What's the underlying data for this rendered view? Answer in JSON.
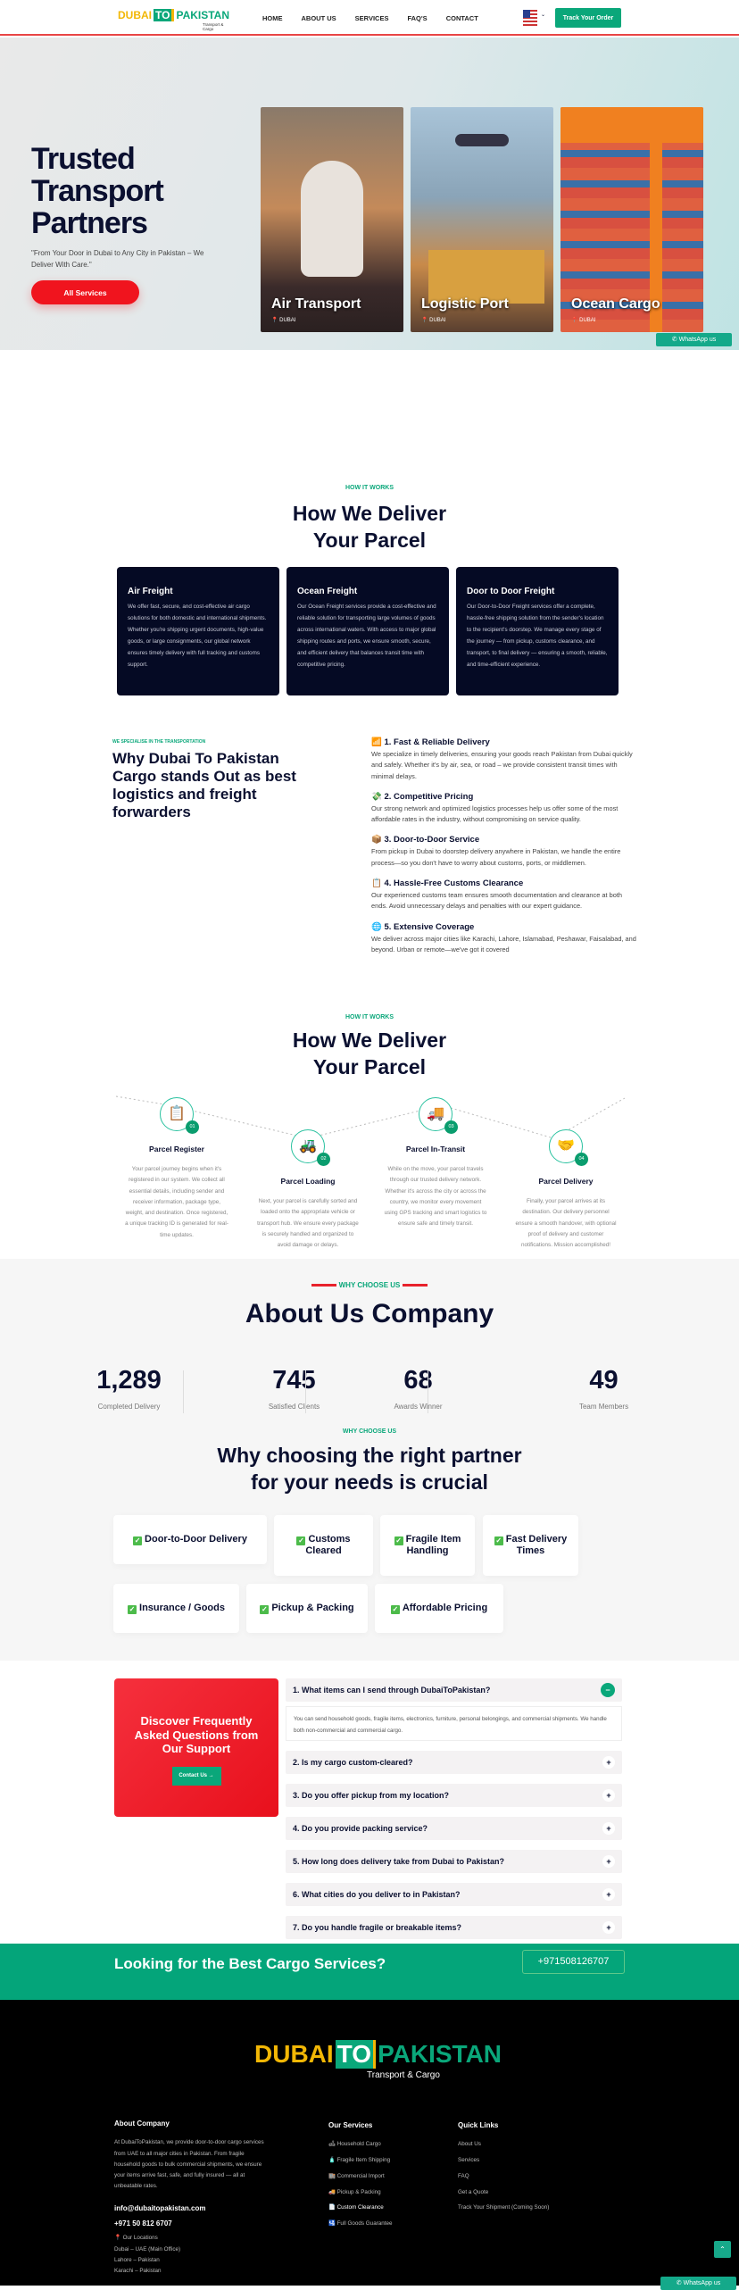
{
  "header": {
    "logo": {
      "left": "DUBAI",
      "mid": "TO",
      "right": "PAKISTAN",
      "tagline": "Transport & Cargo"
    },
    "nav": [
      "HOME",
      "ABOUT US",
      "SERVICES",
      "FAQ'S",
      "CONTACT"
    ],
    "track_label": "Track Your Order",
    "language_flag": "us-flag"
  },
  "hero": {
    "title_lines": [
      "Trusted",
      "Transport",
      "Partners"
    ],
    "subtitle": "\"From Your Door in Dubai to Any City in Pakistan – We Deliver With Care.\"",
    "button": "All Services",
    "cards": [
      {
        "title": "Air Transport",
        "location": "DUBAI"
      },
      {
        "title": "Logistic Port",
        "location": "DUBAI"
      },
      {
        "title": "Ocean Cargo",
        "location": "DUBAI"
      }
    ],
    "whatsapp": "WhatsApp us"
  },
  "how1": {
    "kicker": "HOW IT WORKS",
    "title_lines": [
      "How We Deliver",
      "Your Parcel"
    ],
    "cards": [
      {
        "title": "Air Freight",
        "text": "We offer fast, secure, and cost-effective air cargo solutions for both domestic and international shipments. Whether you're shipping urgent documents, high-value goods, or large consignments, our global network ensures timely delivery with full tracking and customs support."
      },
      {
        "title": "Ocean Freight",
        "text": "Our Ocean Freight services provide a cost-effective and reliable solution for transporting large volumes of goods across international waters. With access to major global shipping routes and ports, we ensure smooth, secure, and efficient delivery that balances transit time with competitive pricing."
      },
      {
        "title": "Door to Door Freight",
        "text": "Our Door-to-Door Freight services offer a complete, hassle-free shipping solution from the sender's location to the recipient's doorstep. We manage every stage of the journey — from pickup, customs clearance, and transport, to final delivery — ensuring a smooth, reliable, and time-efficient experience."
      }
    ]
  },
  "why": {
    "kicker": "WE SPECIALISE IN THE TRANSPORTATION",
    "title": "Why Dubai To Pakistan Cargo stands Out as best logistics and freight forwarders",
    "items": [
      {
        "icon": "📶",
        "title": "1. Fast & Reliable Delivery",
        "text": "We specialize in timely deliveries, ensuring your goods reach Pakistan from Dubai quickly and safely. Whether it's by air, sea, or road – we provide consistent transit times with minimal delays."
      },
      {
        "icon": "💸",
        "title": "2. Competitive Pricing",
        "text": "Our strong network and optimized logistics processes help us offer some of the most affordable rates in the industry, without compromising on service quality."
      },
      {
        "icon": "📦",
        "title": "3. Door-to-Door Service",
        "text": "From pickup in Dubai to doorstep delivery anywhere in Pakistan, we handle the entire process—so you don't have to worry about customs, ports, or middlemen."
      },
      {
        "icon": "📋",
        "title": "4. Hassle-Free Customs Clearance",
        "text": "Our experienced customs team ensures smooth documentation and clearance at both ends. Avoid unnecessary delays and penalties with our expert guidance."
      },
      {
        "icon": "🌐",
        "title": "5. Extensive Coverage",
        "text": "We deliver across major cities like Karachi, Lahore, Islamabad, Peshawar, Faisalabad, and beyond. Urban or remote—we've got it covered"
      }
    ]
  },
  "how2": {
    "kicker": "HOW IT WORKS",
    "title_lines": [
      "How We Deliver",
      "Your Parcel"
    ],
    "steps": [
      {
        "num": "01",
        "icon": "📋",
        "title": "Parcel Register",
        "text": "Your parcel journey begins when it's registered in our system. We collect all essential details, including sender and receiver information, package type, weight, and destination. Once registered, a unique tracking ID is generated for real-time updates."
      },
      {
        "num": "02",
        "icon": "🚜",
        "title": "Parcel Loading",
        "text": "Next, your parcel is carefully sorted and loaded onto the appropriate vehicle or transport hub. We ensure every package is securely handled and organized to avoid damage or delays."
      },
      {
        "num": "03",
        "icon": "🚚",
        "title": "Parcel In-Transit",
        "text": "While on the move, your parcel travels through our trusted delivery network. Whether it's across the city or across the country, we monitor every movement using GPS tracking and smart logistics to ensure safe and timely transit."
      },
      {
        "num": "04",
        "icon": "🤝",
        "title": "Parcel Delivery",
        "text": "Finally, your parcel arrives at its destination. Our delivery personnel ensure a smooth handover, with optional proof of delivery and customer notifications. Mission accomplished!"
      }
    ]
  },
  "about": {
    "kicker": "WHY CHOOSE US",
    "title": "About Us Company",
    "stats": [
      {
        "value": "1,289",
        "label": "Completed Delivery"
      },
      {
        "value": "745",
        "label": "Satisfied Clients"
      },
      {
        "value": "68",
        "label": "Awards Winner"
      },
      {
        "value": "49",
        "label": "Team Members"
      }
    ]
  },
  "partner": {
    "kicker": "WHY CHOOSE US",
    "title_lines": [
      "Why choosing the right partner",
      "for your needs is crucial"
    ],
    "features": [
      "Door-to-Door Delivery",
      "Customs Cleared",
      "Fragile Item Handling",
      "Fast Delivery Times",
      "Insurance / Goods",
      "Pickup & Packing",
      "Affordable Pricing"
    ]
  },
  "faq": {
    "box_title": "Discover Frequently Asked Questions from Our Support",
    "contact": "Contact Us →",
    "items": [
      {
        "q": "1. What items can I send through DubaiToPakistan?",
        "open": true,
        "a": "You can send household goods, fragile items, electronics, furniture, personal belongings, and commercial shipments. We handle both non-commercial and commercial cargo."
      },
      {
        "q": "2. Is my cargo custom-cleared?"
      },
      {
        "q": "3. Do you offer pickup from my location?"
      },
      {
        "q": "4. Do you provide packing service?"
      },
      {
        "q": "5. How long does delivery take from Dubai to Pakistan?"
      },
      {
        "q": "6. What cities do you deliver to in Pakistan?"
      },
      {
        "q": "7. Do you handle fragile or breakable items?"
      }
    ]
  },
  "cta": {
    "title": "Looking for the Best Cargo Services?",
    "phone": "+971508126707"
  },
  "footer": {
    "about": {
      "title": "About Company",
      "text": "At DubaiToPakistan, we provide door-to-door cargo services from UAE to all major cities in Pakistan. From fragile household goods to bulk commercial shipments, we ensure your items arrive fast, safe, and fully insured — all at unbeatable rates.",
      "email": "info@dubaitopakistan.com",
      "phone": "+971 50 812 6707",
      "locations_title": "📍 Our Locations",
      "locations": [
        "Dubai – UAE (Main Office)",
        "Lahore – Pakistan",
        "Karachi – Pakistan"
      ]
    },
    "services": {
      "title": "Our Services",
      "items": [
        "🛋 Household Cargo",
        "🧴 Fragile Item Shipping",
        "🏬 Commercial Import",
        "🚚 Pickup & Packing",
        "📄 Custom Clearance",
        "🛂 Full Goods Guarantee"
      ]
    },
    "links": {
      "title": "Quick Links",
      "items": [
        "About Us",
        "Services",
        "FAQ",
        "Get a Quote",
        "Track Your Shipment (Coming Soon)"
      ]
    },
    "whatsapp": "WhatsApp us"
  },
  "colors": {
    "brand_green": "#0aa77a",
    "brand_yellow": "#f2b705",
    "accent_red": "#f0141e",
    "navy": "#050a24"
  }
}
